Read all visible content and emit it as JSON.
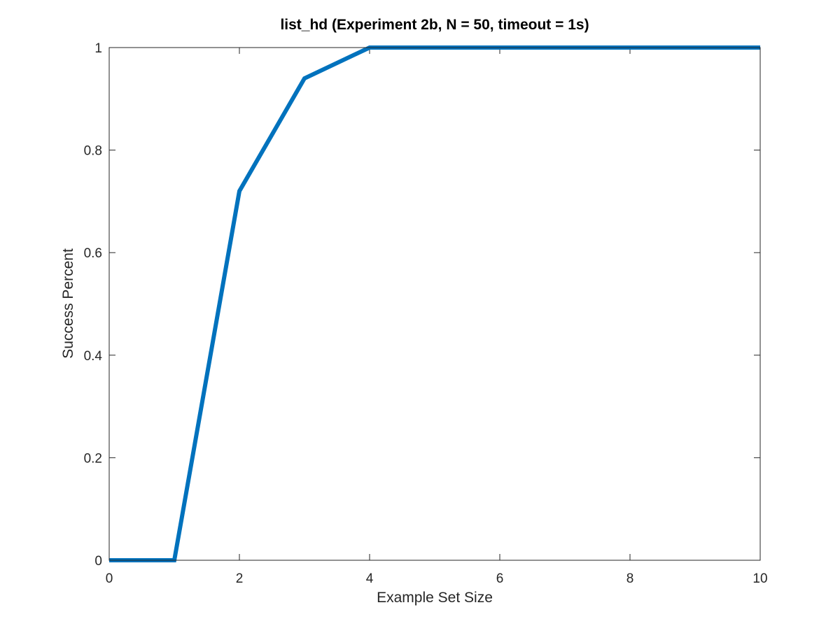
{
  "chart_data": {
    "type": "line",
    "title": "list_hd (Experiment 2b, N = 50, timeout = 1s)",
    "xlabel": "Example Set Size",
    "ylabel": "Success Percent",
    "xlim": [
      0,
      10
    ],
    "ylim": [
      0,
      1
    ],
    "xticks": [
      0,
      2,
      4,
      6,
      8,
      10
    ],
    "yticks": [
      0,
      0.2,
      0.4,
      0.6,
      0.8,
      1
    ],
    "xtick_labels": [
      "0",
      "2",
      "4",
      "6",
      "8",
      "10"
    ],
    "ytick_labels": [
      "0",
      "0.2",
      "0.4",
      "0.6",
      "0.8",
      "1"
    ],
    "grid": false,
    "series": [
      {
        "color": "#0072bd",
        "x": [
          0,
          1,
          2,
          3,
          4,
          5,
          6,
          7,
          8,
          9,
          10
        ],
        "y": [
          0,
          0,
          0.72,
          0.94,
          1,
          1,
          1,
          1,
          1,
          1,
          1
        ]
      }
    ]
  }
}
